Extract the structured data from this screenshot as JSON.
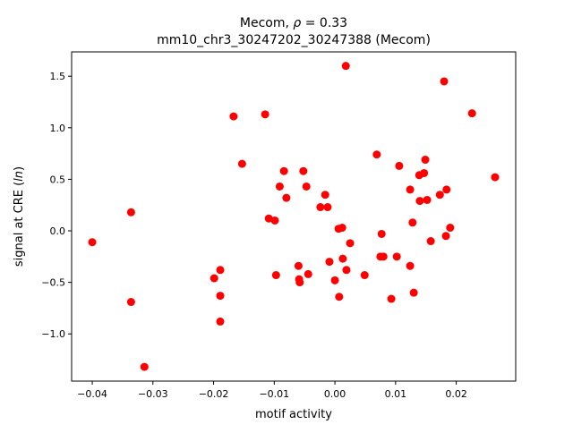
{
  "chart_data": {
    "type": "scatter",
    "title_line1_prefix": "Mecom, ",
    "title_line1_rho": "ρ",
    "title_line1_suffix": " = 0.33",
    "title_line2": "mm10_chr3_30247202_30247388 (Mecom)",
    "xlabel": "motif activity",
    "ylabel_prefix": "signal at CRE (",
    "ylabel_italic": "ln",
    "ylabel_suffix": ")",
    "xlim": [
      -0.0434,
      0.0298
    ],
    "ylim": [
      -1.458,
      1.736
    ],
    "xticks": [
      -0.04,
      -0.03,
      -0.02,
      -0.01,
      0.0,
      0.01,
      0.02
    ],
    "xtick_labels": [
      "−0.04",
      "−0.03",
      "−0.02",
      "−0.01",
      "0.00",
      "0.01",
      "0.02"
    ],
    "yticks": [
      -1.0,
      -0.5,
      0.0,
      0.5,
      1.0,
      1.5
    ],
    "ytick_labels": [
      "−1.0",
      "−0.5",
      "0.0",
      "0.5",
      "1.0",
      "1.5"
    ],
    "grid": false,
    "marker_color": "#ff0000",
    "points": [
      [
        -0.04,
        -0.11
      ],
      [
        -0.0336,
        0.18
      ],
      [
        -0.0336,
        -0.69
      ],
      [
        -0.0314,
        -1.32
      ],
      [
        -0.0199,
        -0.46
      ],
      [
        -0.0189,
        -0.38
      ],
      [
        -0.0189,
        -0.63
      ],
      [
        -0.0189,
        -0.88
      ],
      [
        -0.0167,
        1.11
      ],
      [
        -0.0153,
        0.65
      ],
      [
        -0.0115,
        1.13
      ],
      [
        -0.0109,
        0.12
      ],
      [
        -0.0099,
        0.1
      ],
      [
        -0.0097,
        -0.43
      ],
      [
        -0.0091,
        0.43
      ],
      [
        -0.0084,
        0.58
      ],
      [
        -0.008,
        0.32
      ],
      [
        -0.006,
        -0.34
      ],
      [
        -0.0059,
        -0.47
      ],
      [
        -0.0058,
        -0.5
      ],
      [
        -0.0052,
        0.58
      ],
      [
        -0.0047,
        0.43
      ],
      [
        -0.0044,
        -0.42
      ],
      [
        -0.0024,
        0.23
      ],
      [
        -0.0016,
        0.35
      ],
      [
        -0.0012,
        0.23
      ],
      [
        -0.0009,
        -0.3
      ],
      [
        -0.0,
        -0.48
      ],
      [
        0.0006,
        0.02
      ],
      [
        0.0007,
        -0.64
      ],
      [
        0.0012,
        0.03
      ],
      [
        0.0013,
        -0.27
      ],
      [
        0.0018,
        1.6
      ],
      [
        0.0019,
        -0.38
      ],
      [
        0.0025,
        -0.12
      ],
      [
        0.0049,
        -0.43
      ],
      [
        0.0069,
        0.74
      ],
      [
        0.0077,
        -0.03
      ],
      [
        0.0075,
        -0.25
      ],
      [
        0.008,
        -0.25
      ],
      [
        0.0093,
        -0.66
      ],
      [
        0.0102,
        -0.25
      ],
      [
        0.0106,
        0.63
      ],
      [
        0.0124,
        0.4
      ],
      [
        0.0124,
        -0.34
      ],
      [
        0.0128,
        0.08
      ],
      [
        0.013,
        -0.6
      ],
      [
        0.0139,
        0.54
      ],
      [
        0.014,
        0.29
      ],
      [
        0.0147,
        0.56
      ],
      [
        0.0149,
        0.69
      ],
      [
        0.0152,
        0.3
      ],
      [
        0.0158,
        -0.1
      ],
      [
        0.0173,
        0.35
      ],
      [
        0.018,
        1.45
      ],
      [
        0.0183,
        -0.05
      ],
      [
        0.0184,
        0.4
      ],
      [
        0.019,
        0.03
      ],
      [
        0.0226,
        1.14
      ],
      [
        0.0264,
        0.52
      ]
    ]
  }
}
